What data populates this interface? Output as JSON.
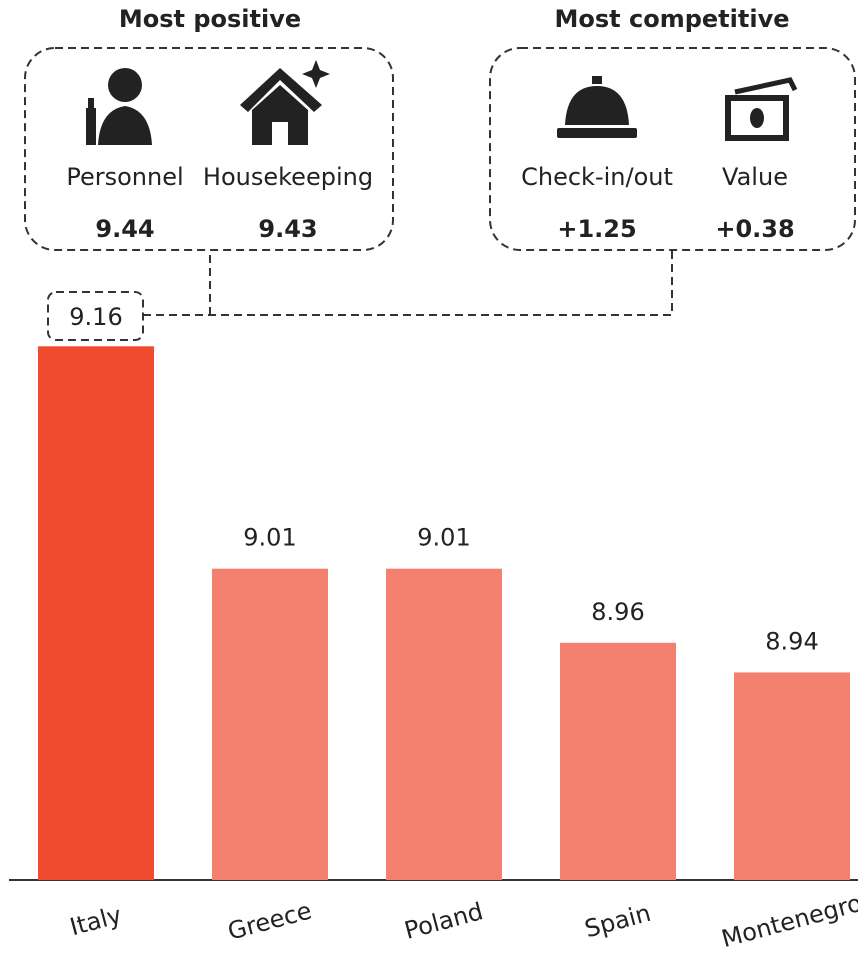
{
  "chart_data": {
    "type": "bar",
    "categories": [
      "Italy",
      "Greece",
      "Poland",
      "Spain",
      "Montenegro"
    ],
    "values": [
      9.16,
      9.01,
      9.01,
      8.96,
      8.94
    ],
    "colors": [
      "#f04b2e",
      "#f4806f",
      "#f4806f",
      "#f4806f",
      "#f4806f"
    ],
    "ylim": [
      8.8,
      9.2
    ],
    "panels": [
      {
        "title": "Most positive",
        "items": [
          {
            "name": "Personnel",
            "value": 9.44
          },
          {
            "name": "Housekeeping",
            "value": 9.43
          }
        ]
      },
      {
        "title": "Most competitive",
        "items": [
          {
            "name": "Check-in/out",
            "value": 1.25,
            "label": "+1.25"
          },
          {
            "name": "Value",
            "value": 0.38,
            "label": "+0.38"
          }
        ]
      }
    ]
  }
}
